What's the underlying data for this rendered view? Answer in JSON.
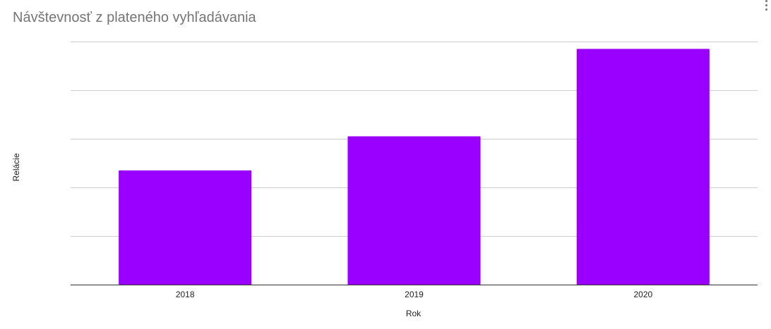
{
  "chart_data": {
    "type": "bar",
    "title": "Návštevnosť z plateného vyhľadávania",
    "xlabel": "Rok",
    "ylabel": "Relácie",
    "categories": [
      "2018",
      "2019",
      "2020"
    ],
    "values": [
      47,
      61,
      97
    ],
    "ylim": [
      0,
      100
    ],
    "gridlines": 5,
    "grid": true,
    "legend": "none",
    "bar_color": "#9900ff",
    "gridline_color": "#cccccc",
    "axis_color": "#333333"
  },
  "menu": {
    "icon": "more-vert-icon"
  }
}
